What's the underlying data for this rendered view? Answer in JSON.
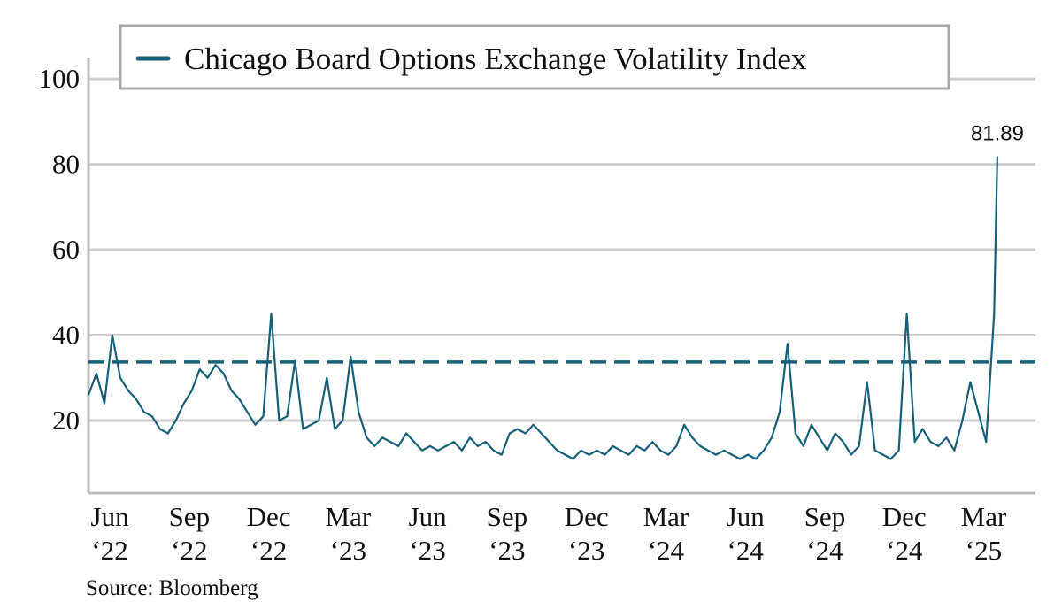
{
  "chart_data": {
    "type": "line",
    "series": [
      {
        "name": "Chicago Board Options Exchange Volatility Index",
        "color": "#17607a",
        "x": [
          2022.35,
          2022.375,
          2022.4,
          2022.425,
          2022.45,
          2022.475,
          2022.5,
          2022.525,
          2022.55,
          2022.575,
          2022.6,
          2022.625,
          2022.65,
          2022.675,
          2022.7,
          2022.725,
          2022.75,
          2022.775,
          2022.8,
          2022.825,
          2022.85,
          2022.875,
          2022.9,
          2022.925,
          2022.95,
          2022.975,
          2023.0,
          2023.025,
          2023.05,
          2023.075,
          2023.1,
          2023.125,
          2023.15,
          2023.175,
          2023.2,
          2023.225,
          2023.25,
          2023.275,
          2023.3,
          2023.325,
          2023.35,
          2023.375,
          2023.4,
          2023.425,
          2023.45,
          2023.475,
          2023.5,
          2023.525,
          2023.55,
          2023.575,
          2023.6,
          2023.625,
          2023.65,
          2023.675,
          2023.7,
          2023.725,
          2023.75,
          2023.775,
          2023.8,
          2023.825,
          2023.85,
          2023.875,
          2023.9,
          2023.925,
          2023.95,
          2023.975,
          2024.0,
          2024.025,
          2024.05,
          2024.075,
          2024.1,
          2024.125,
          2024.15,
          2024.175,
          2024.2,
          2024.225,
          2024.25,
          2024.275,
          2024.3,
          2024.325,
          2024.35,
          2024.375,
          2024.4,
          2024.425,
          2024.45,
          2024.475,
          2024.5,
          2024.525,
          2024.55,
          2024.575,
          2024.6,
          2024.625,
          2024.65,
          2024.675,
          2024.7,
          2024.725,
          2024.75,
          2024.775,
          2024.8,
          2024.825,
          2024.85,
          2024.875,
          2024.9,
          2024.925,
          2024.95,
          2024.975,
          2025.0,
          2025.025,
          2025.05,
          2025.075,
          2025.1,
          2025.125,
          2025.15,
          2025.175,
          2025.2,
          2025.21
        ],
        "values": [
          26,
          31,
          24,
          40,
          30,
          27,
          25,
          22,
          21,
          18,
          17,
          20,
          24,
          27,
          32,
          30,
          33,
          31,
          27,
          25,
          22,
          19,
          21,
          45,
          20,
          21,
          34,
          18,
          19,
          20,
          30,
          18,
          20,
          35,
          22,
          16,
          14,
          16,
          15,
          14,
          17,
          15,
          13,
          14,
          13,
          14,
          15,
          13,
          16,
          14,
          15,
          13,
          12,
          17,
          18,
          17,
          19,
          17,
          15,
          13,
          12,
          11,
          13,
          12,
          13,
          12,
          14,
          13,
          12,
          14,
          13,
          15,
          13,
          12,
          14,
          19,
          16,
          14,
          13,
          12,
          13,
          12,
          11,
          12,
          11,
          13,
          16,
          22,
          38,
          17,
          14,
          19,
          16,
          13,
          17,
          15,
          12,
          14,
          29,
          13,
          12,
          11,
          13,
          45,
          15,
          18,
          15,
          14,
          16,
          13,
          20,
          29,
          22,
          15,
          45,
          81.89
        ]
      }
    ],
    "annotation": {
      "text": "81.89"
    },
    "reference_line": 33.7,
    "xlim": [
      2022.35,
      2025.33
    ],
    "xticks": [
      {
        "value": 2022.417,
        "label": "Jun\n‘22"
      },
      {
        "value": 2022.667,
        "label": "Sep\n‘22"
      },
      {
        "value": 2022.917,
        "label": "Dec\n‘22"
      },
      {
        "value": 2023.167,
        "label": "Mar\n‘23"
      },
      {
        "value": 2023.417,
        "label": "Jun\n‘23"
      },
      {
        "value": 2023.667,
        "label": "Sep\n‘23"
      },
      {
        "value": 2023.917,
        "label": "Dec\n‘23"
      },
      {
        "value": 2024.167,
        "label": "Mar\n‘24"
      },
      {
        "value": 2024.417,
        "label": "Jun\n‘24"
      },
      {
        "value": 2024.667,
        "label": "Sep\n‘24"
      },
      {
        "value": 2024.917,
        "label": "Dec\n‘24"
      },
      {
        "value": 2025.167,
        "label": "Mar\n‘25"
      }
    ],
    "ylim": [
      3,
      105
    ],
    "yticks": [
      20,
      40,
      60,
      80,
      100
    ],
    "grid": true,
    "source": "Source: Bloomberg"
  }
}
